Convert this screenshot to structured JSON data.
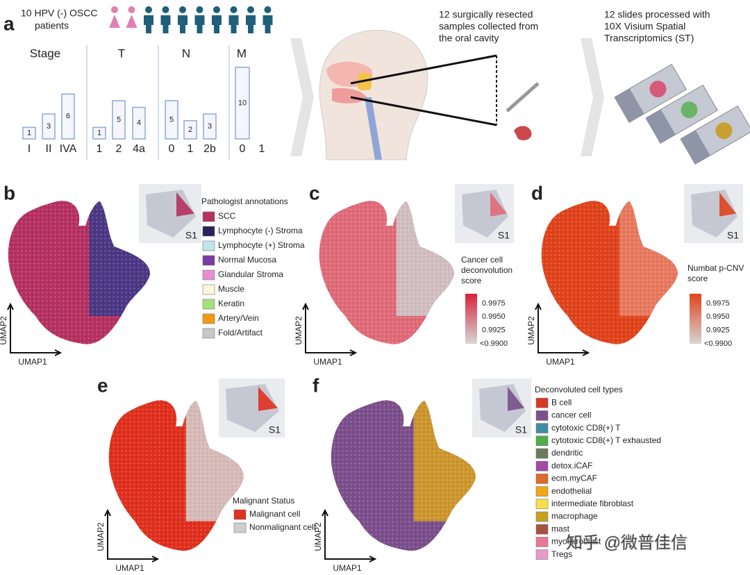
{
  "panel_a": {
    "label": "a",
    "cohort": [
      "10 HPV (-) OSCC",
      "patients"
    ],
    "groups": [
      {
        "title": "Stage",
        "categories": [
          "I",
          "II",
          "IVA"
        ],
        "counts": [
          1,
          3,
          6
        ]
      },
      {
        "title": "T",
        "categories": [
          "1",
          "2",
          "4a"
        ],
        "counts": [
          1,
          5,
          4
        ]
      },
      {
        "title": "N",
        "categories": [
          "0",
          "1",
          "2b"
        ],
        "counts": [
          5,
          2,
          3
        ]
      },
      {
        "title": "M",
        "categories": [
          "0",
          "1"
        ],
        "counts": [
          10,
          null
        ]
      }
    ],
    "steps": [
      [
        "12 surgically resected",
        "samples collected from",
        "the oral cavity"
      ],
      [
        "12 slides processed with",
        "10X Visium Spatial",
        "Transcriptomics (ST)"
      ]
    ]
  },
  "panels": [
    {
      "label": "b",
      "inset": "S1",
      "x_axis": "UMAP1",
      "y_axis": "UMAP2",
      "legend_title": [
        "Pathologist annotations"
      ],
      "legend": [
        {
          "label": "SCC",
          "color": "#b5315f"
        },
        {
          "label": "Lymphocyte (-) Stroma",
          "color": "#26245e"
        },
        {
          "label": "Lymphocyte (+) Stroma",
          "color": "#bfe3ef"
        },
        {
          "label": "Normal Mucosa",
          "color": "#7a3aa8"
        },
        {
          "label": "Glandular Stroma",
          "color": "#e58fd4"
        },
        {
          "label": "Muscle",
          "color": "#fbf7dc"
        },
        {
          "label": "Keratin",
          "color": "#a6e07a"
        },
        {
          "label": "Artery/Vein",
          "color": "#f09a12"
        },
        {
          "label": "Fold/Artifact",
          "color": "#c8c8c8"
        }
      ]
    },
    {
      "label": "c",
      "inset": "S1",
      "x_axis": "UMAP1",
      "y_axis": "UMAP2",
      "legend_title": [
        "Cancer cell",
        "deconvolution",
        "score"
      ],
      "colorbar": [
        "0.9975",
        "0.9950",
        "0.9925",
        "<0.9900"
      ],
      "color": "#d8233a"
    },
    {
      "label": "d",
      "inset": "S1",
      "x_axis": "UMAP1",
      "y_axis": "UMAP2",
      "legend_title": [
        "Numbat p-CNV",
        "score"
      ],
      "colorbar": [
        "0.9975",
        "0.9950",
        "0.9925",
        "<0.9900"
      ],
      "color": "#e0431c"
    },
    {
      "label": "e",
      "inset": "S1",
      "x_axis": "UMAP1",
      "y_axis": "UMAP2",
      "legend_title": [
        "Malignant Status"
      ],
      "legend": [
        {
          "label": "Malignant cell",
          "color": "#e0301e"
        },
        {
          "label": "Nonmalignant cell",
          "color": "#cfcfcf"
        }
      ]
    },
    {
      "label": "f",
      "inset": "S1",
      "x_axis": "UMAP1",
      "y_axis": "UMAP2",
      "legend_title": [
        "Deconvoluted cell types"
      ],
      "legend": [
        {
          "label": "B cell",
          "color": "#d93a26"
        },
        {
          "label": "cancer cell",
          "color": "#7b4f8c"
        },
        {
          "label": "cytotoxic CD8(+) T",
          "color": "#3f8ea3"
        },
        {
          "label": "cytotoxic CD8(+) T exhausted",
          "color": "#4fae49"
        },
        {
          "label": "dendritic",
          "color": "#6d7a5f"
        },
        {
          "label": "detox.iCAF",
          "color": "#a44aa6"
        },
        {
          "label": "ecm.myCAF",
          "color": "#e06a28"
        },
        {
          "label": "endothelial",
          "color": "#f2a515"
        },
        {
          "label": "intermediate fibroblast",
          "color": "#f7df4a"
        },
        {
          "label": "macrophage",
          "color": "#c8a020"
        },
        {
          "label": "mast",
          "color": "#a8533e"
        },
        {
          "label": "myofibroblast",
          "color": "#e8789a"
        },
        {
          "label": "Tregs",
          "color": "#e79bc8"
        }
      ]
    }
  ],
  "watermark": "知乎 @微普佳信"
}
